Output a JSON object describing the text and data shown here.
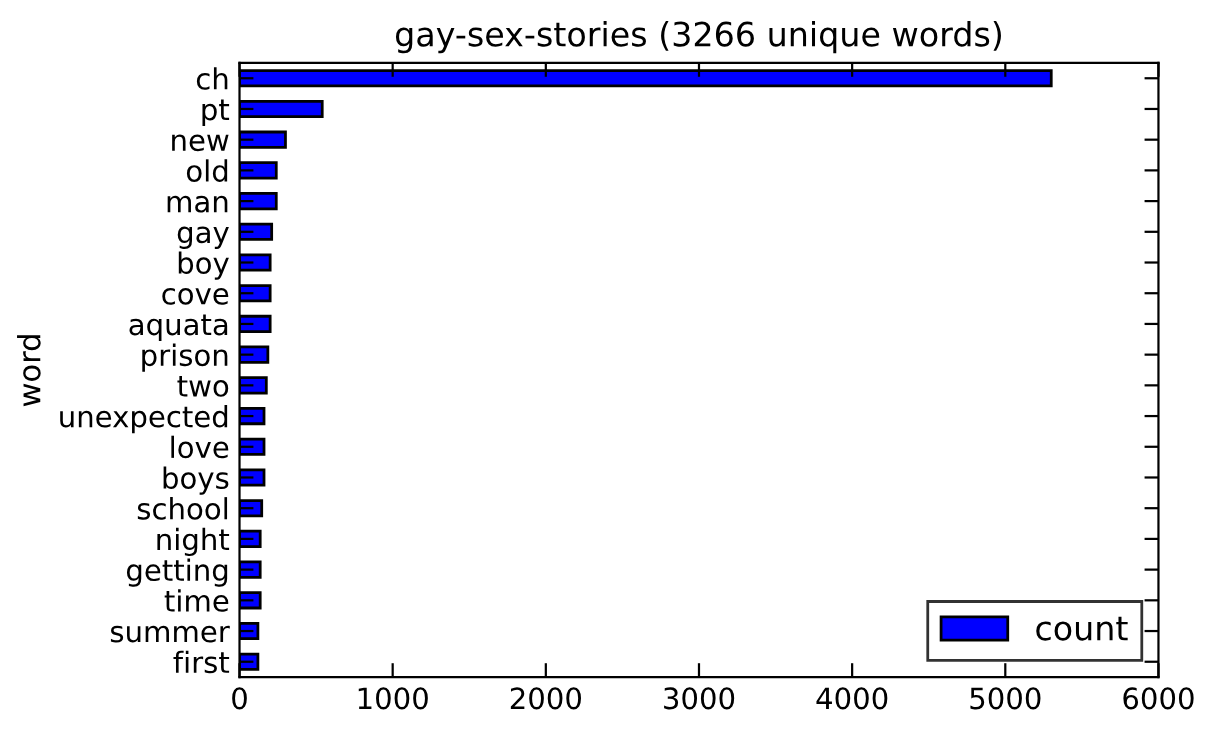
{
  "chart_data": {
    "type": "bar",
    "orientation": "horizontal",
    "title": "gay-sex-stories (3266 unique words)",
    "ylabel": "word",
    "categories": [
      "ch",
      "pt",
      "new",
      "old",
      "man",
      "gay",
      "boy",
      "cove",
      "aquata",
      "prison",
      "two",
      "unexpected",
      "love",
      "boys",
      "school",
      "night",
      "getting",
      "time",
      "summer",
      "first"
    ],
    "series": [
      {
        "name": "count",
        "color": "#0000ff",
        "values": [
          5300,
          540,
          300,
          240,
          240,
          210,
          200,
          200,
          200,
          185,
          175,
          160,
          160,
          160,
          145,
          135,
          135,
          135,
          120,
          120
        ]
      }
    ],
    "xlim": [
      0,
      6000
    ],
    "xticks": [
      0,
      1000,
      2000,
      3000,
      4000,
      5000,
      6000
    ],
    "legend": "bottom right",
    "grid": false
  }
}
